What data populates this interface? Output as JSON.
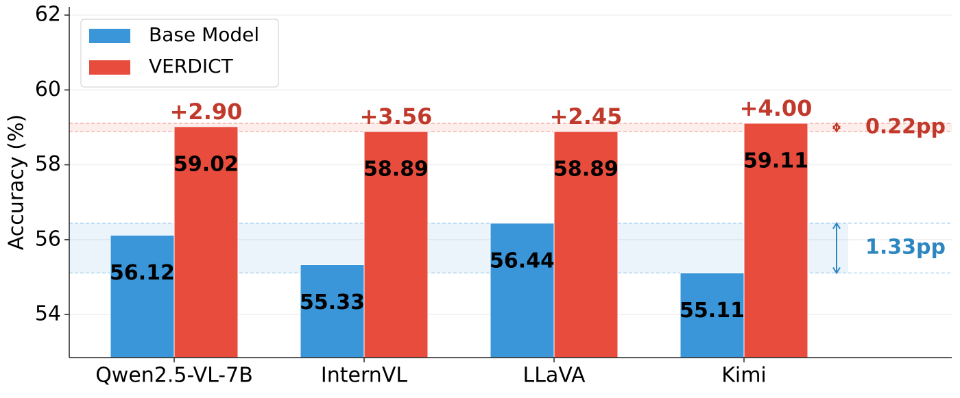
{
  "chart_data": {
    "type": "bar",
    "categories": [
      "Qwen2.5-VL-7B",
      "InternVL",
      "LLaVA",
      "Kimi"
    ],
    "series": [
      {
        "name": "Base Model",
        "color": "#3a96d8",
        "values": [
          56.12,
          55.33,
          56.44,
          55.11
        ]
      },
      {
        "name": "VERDICT",
        "color": "#e84c3d",
        "values": [
          59.02,
          58.89,
          58.89,
          59.11
        ]
      }
    ],
    "diff_labels": [
      "+2.90",
      "+3.56",
      "+2.45",
      "+4.00"
    ],
    "diff_color": "#c0392b",
    "range_labels": [
      {
        "series": 1,
        "text": "0.22pp",
        "color": "#c0392b"
      },
      {
        "series": 0,
        "text": "1.33pp",
        "color": "#2e86c1"
      }
    ],
    "y_label": "Accuracy (%)",
    "ylim": [
      52.85,
      62.22
    ],
    "yticks": [
      54,
      56,
      58,
      60,
      62
    ],
    "grid": true,
    "legend": "upper left"
  }
}
